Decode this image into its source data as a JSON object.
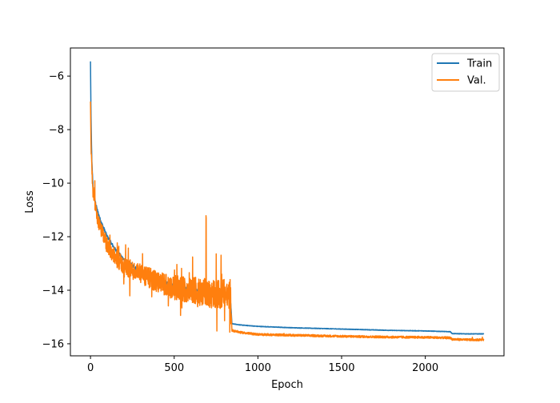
{
  "chart_data": {
    "type": "line",
    "title": "",
    "xlabel": "Epoch",
    "ylabel": "Loss",
    "xlim": [
      -120,
      2470
    ],
    "ylim": [
      -16.45,
      -4.95
    ],
    "xticks": [
      0,
      500,
      1000,
      1500,
      2000
    ],
    "yticks": [
      -6,
      -8,
      -10,
      -12,
      -14,
      -16
    ],
    "grid": false,
    "legend_position": "top-right",
    "series": [
      {
        "name": "Train",
        "color": "#1f77b4",
        "x": [
          0,
          3,
          8,
          15,
          25,
          40,
          60,
          80,
          100,
          150,
          200,
          300,
          400,
          500,
          600,
          700,
          800,
          835,
          845,
          900,
          1000,
          1200,
          1500,
          1800,
          2000,
          2150,
          2160,
          2250,
          2350
        ],
        "y": [
          -5.45,
          -7.5,
          -9.2,
          -10.1,
          -10.6,
          -11.0,
          -11.4,
          -11.7,
          -12.0,
          -12.5,
          -12.85,
          -13.3,
          -13.6,
          -13.85,
          -13.95,
          -14.05,
          -14.15,
          -14.2,
          -15.25,
          -15.3,
          -15.35,
          -15.4,
          -15.45,
          -15.5,
          -15.52,
          -15.55,
          -15.62,
          -15.63,
          -15.63
        ]
      },
      {
        "name": "Val.",
        "color": "#ff7f0e",
        "x": [
          0,
          3,
          8,
          15,
          25,
          40,
          60,
          80,
          100,
          150,
          200,
          300,
          400,
          500,
          600,
          700,
          800,
          835,
          845,
          900,
          1000,
          1200,
          1500,
          1800,
          2000,
          2150,
          2160,
          2250,
          2350
        ],
        "y": [
          -6.95,
          -8.5,
          -9.5,
          -10.3,
          -10.8,
          -11.3,
          -11.7,
          -12.0,
          -12.3,
          -12.8,
          -13.1,
          -13.4,
          -13.7,
          -13.9,
          -14.0,
          -14.1,
          -14.15,
          -14.2,
          -15.5,
          -15.58,
          -15.65,
          -15.68,
          -15.72,
          -15.75,
          -15.76,
          -15.78,
          -15.83,
          -15.85,
          -15.85
        ]
      }
    ]
  }
}
